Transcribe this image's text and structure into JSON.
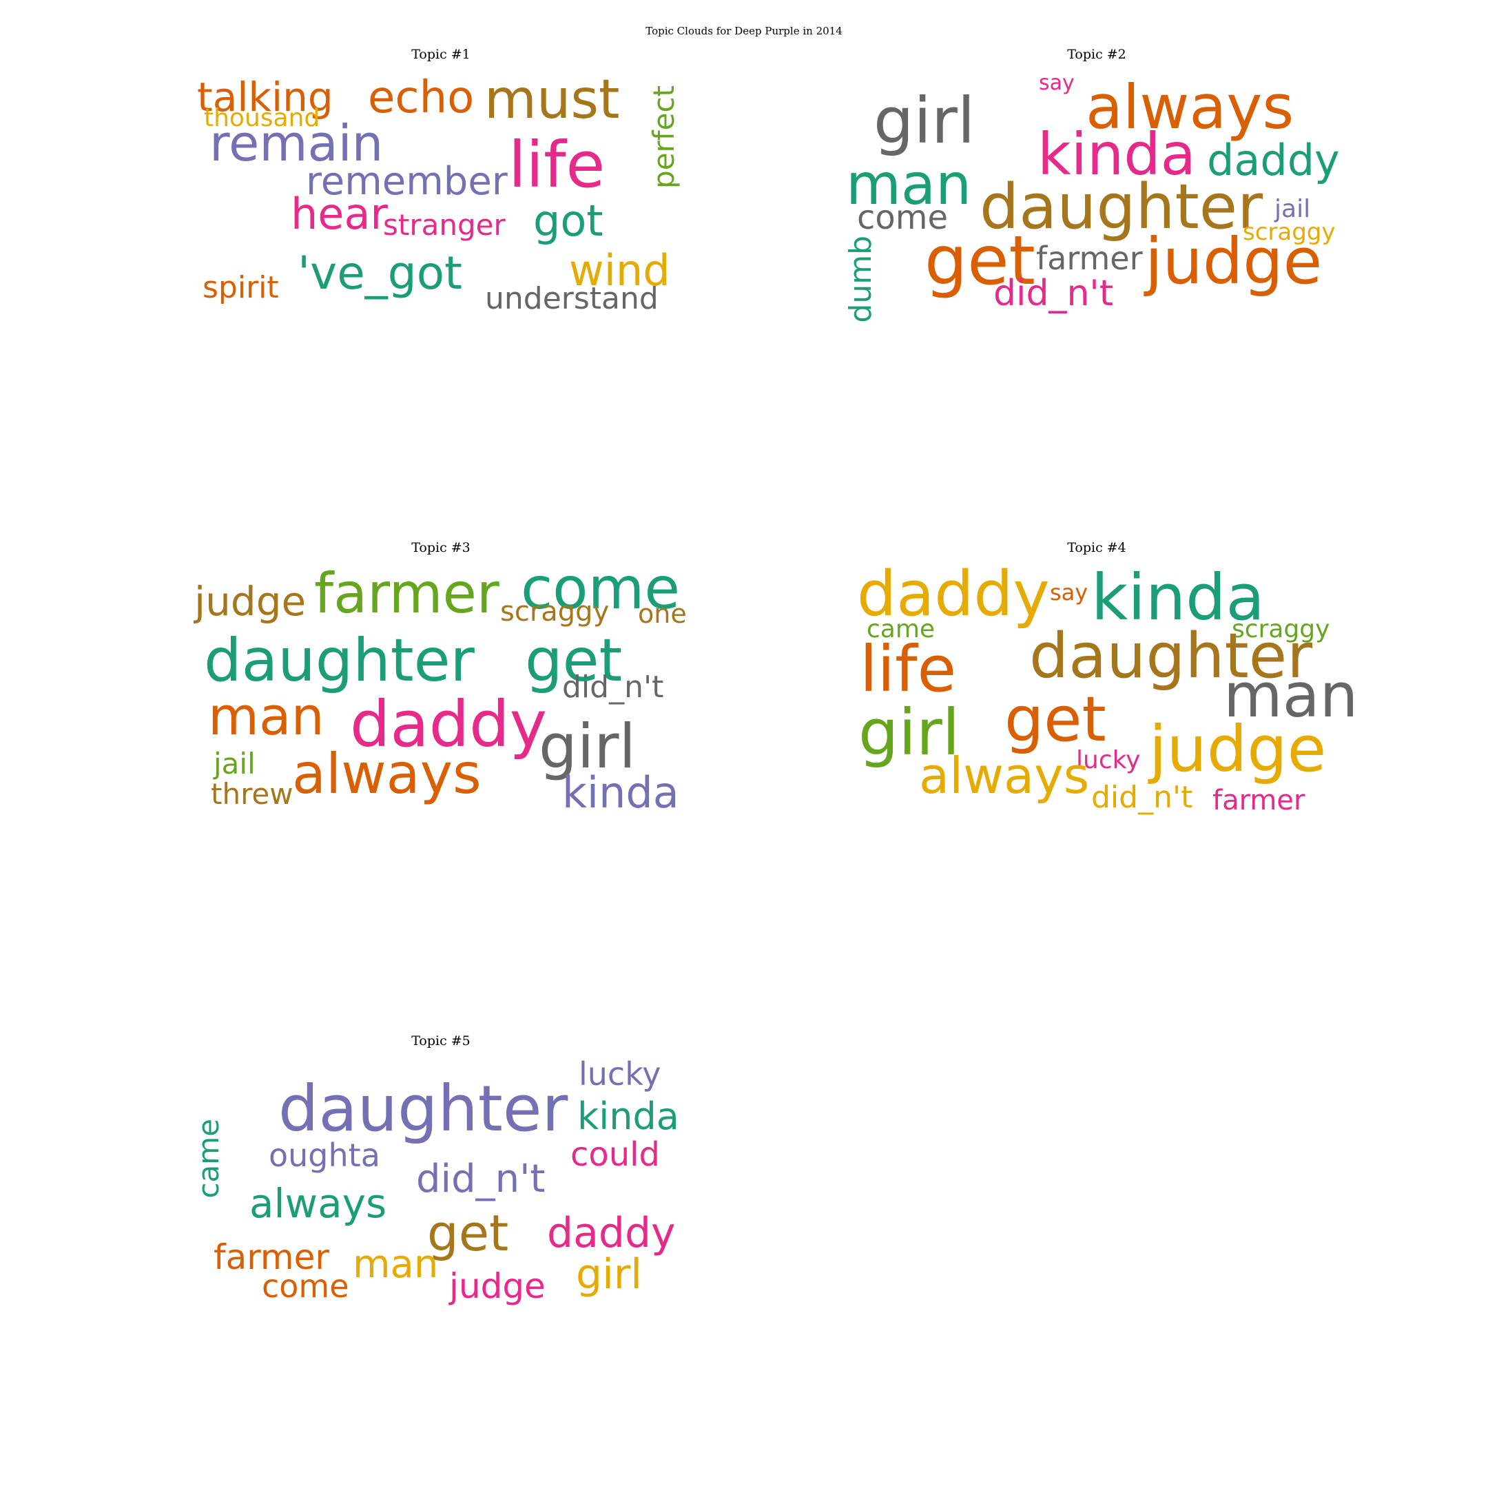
{
  "figure": {
    "title": "Topic Clouds for Deep Purple in 2014"
  },
  "palette": {
    "teal": "#1b9e77",
    "orange": "#d95f02",
    "purple": "#7570b3",
    "pink": "#e7298a",
    "green": "#66a61e",
    "yellow": "#e6ab02",
    "brown": "#a6761d",
    "gray": "#666666"
  },
  "topics": [
    {
      "title": "Topic #1",
      "words": [
        {
          "text": "talking",
          "color": "#d95f02"
        },
        {
          "text": "echo",
          "color": "#d95f02"
        },
        {
          "text": "must",
          "color": "#a6761d"
        },
        {
          "text": "thousand",
          "color": "#e6ab02"
        },
        {
          "text": "remain",
          "color": "#7570b3"
        },
        {
          "text": "life",
          "color": "#e7298a"
        },
        {
          "text": "perfect",
          "color": "#66a61e",
          "vertical": true
        },
        {
          "text": "remember",
          "color": "#7570b3"
        },
        {
          "text": "hear",
          "color": "#e7298a"
        },
        {
          "text": "stranger",
          "color": "#e7298a"
        },
        {
          "text": "got",
          "color": "#1b9e77"
        },
        {
          "text": "'ve_got",
          "color": "#1b9e77"
        },
        {
          "text": "wind",
          "color": "#e6ab02"
        },
        {
          "text": "spirit",
          "color": "#d95f02"
        },
        {
          "text": "understand",
          "color": "#666666"
        }
      ]
    },
    {
      "title": "Topic #2",
      "words": [
        {
          "text": "girl",
          "color": "#666666"
        },
        {
          "text": "say",
          "color": "#e7298a"
        },
        {
          "text": "always",
          "color": "#d95f02"
        },
        {
          "text": "kinda",
          "color": "#e7298a"
        },
        {
          "text": "daddy",
          "color": "#1b9e77"
        },
        {
          "text": "man",
          "color": "#1b9e77"
        },
        {
          "text": "daughter",
          "color": "#a6761d"
        },
        {
          "text": "come",
          "color": "#666666"
        },
        {
          "text": "jail",
          "color": "#7570b3"
        },
        {
          "text": "scraggy",
          "color": "#e6ab02"
        },
        {
          "text": "dumb",
          "color": "#1b9e77",
          "vertical": true
        },
        {
          "text": "get",
          "color": "#d95f02"
        },
        {
          "text": "farmer",
          "color": "#666666"
        },
        {
          "text": "judge",
          "color": "#d95f02"
        },
        {
          "text": "did_n't",
          "color": "#e7298a"
        }
      ]
    },
    {
      "title": "Topic #3",
      "words": [
        {
          "text": "judge",
          "color": "#a6761d"
        },
        {
          "text": "farmer",
          "color": "#66a61e"
        },
        {
          "text": "come",
          "color": "#1b9e77"
        },
        {
          "text": "scraggy",
          "color": "#a6761d"
        },
        {
          "text": "one",
          "color": "#a6761d"
        },
        {
          "text": "daughter",
          "color": "#1b9e77"
        },
        {
          "text": "get",
          "color": "#1b9e77"
        },
        {
          "text": "did_n't",
          "color": "#666666"
        },
        {
          "text": "man",
          "color": "#d95f02"
        },
        {
          "text": "daddy",
          "color": "#e7298a"
        },
        {
          "text": "girl",
          "color": "#666666"
        },
        {
          "text": "jail",
          "color": "#66a61e"
        },
        {
          "text": "always",
          "color": "#d95f02"
        },
        {
          "text": "threw",
          "color": "#a6761d"
        },
        {
          "text": "kinda",
          "color": "#7570b3"
        }
      ]
    },
    {
      "title": "Topic #4",
      "words": [
        {
          "text": "daddy",
          "color": "#e6ab02"
        },
        {
          "text": "say",
          "color": "#d95f02"
        },
        {
          "text": "kinda",
          "color": "#1b9e77"
        },
        {
          "text": "came",
          "color": "#66a61e"
        },
        {
          "text": "scraggy",
          "color": "#66a61e"
        },
        {
          "text": "life",
          "color": "#d95f02"
        },
        {
          "text": "daughter",
          "color": "#a6761d"
        },
        {
          "text": "man",
          "color": "#666666"
        },
        {
          "text": "girl",
          "color": "#66a61e"
        },
        {
          "text": "get",
          "color": "#d95f02"
        },
        {
          "text": "lucky",
          "color": "#e7298a"
        },
        {
          "text": "judge",
          "color": "#e6ab02"
        },
        {
          "text": "always",
          "color": "#e6ab02"
        },
        {
          "text": "did_n't",
          "color": "#e6ab02"
        },
        {
          "text": "farmer",
          "color": "#e7298a"
        }
      ]
    },
    {
      "title": "Topic #5",
      "words": [
        {
          "text": "lucky",
          "color": "#7570b3"
        },
        {
          "text": "daughter",
          "color": "#7570b3"
        },
        {
          "text": "kinda",
          "color": "#1b9e77"
        },
        {
          "text": "came",
          "color": "#1b9e77",
          "vertical": true
        },
        {
          "text": "oughta",
          "color": "#7570b3"
        },
        {
          "text": "could",
          "color": "#e7298a"
        },
        {
          "text": "did_n't",
          "color": "#7570b3"
        },
        {
          "text": "always",
          "color": "#1b9e77"
        },
        {
          "text": "get",
          "color": "#a6761d"
        },
        {
          "text": "daddy",
          "color": "#e7298a"
        },
        {
          "text": "farmer",
          "color": "#d95f02"
        },
        {
          "text": "man",
          "color": "#e6ab02"
        },
        {
          "text": "come",
          "color": "#d95f02"
        },
        {
          "text": "judge",
          "color": "#e7298a"
        },
        {
          "text": "girl",
          "color": "#e6ab02"
        }
      ]
    }
  ]
}
